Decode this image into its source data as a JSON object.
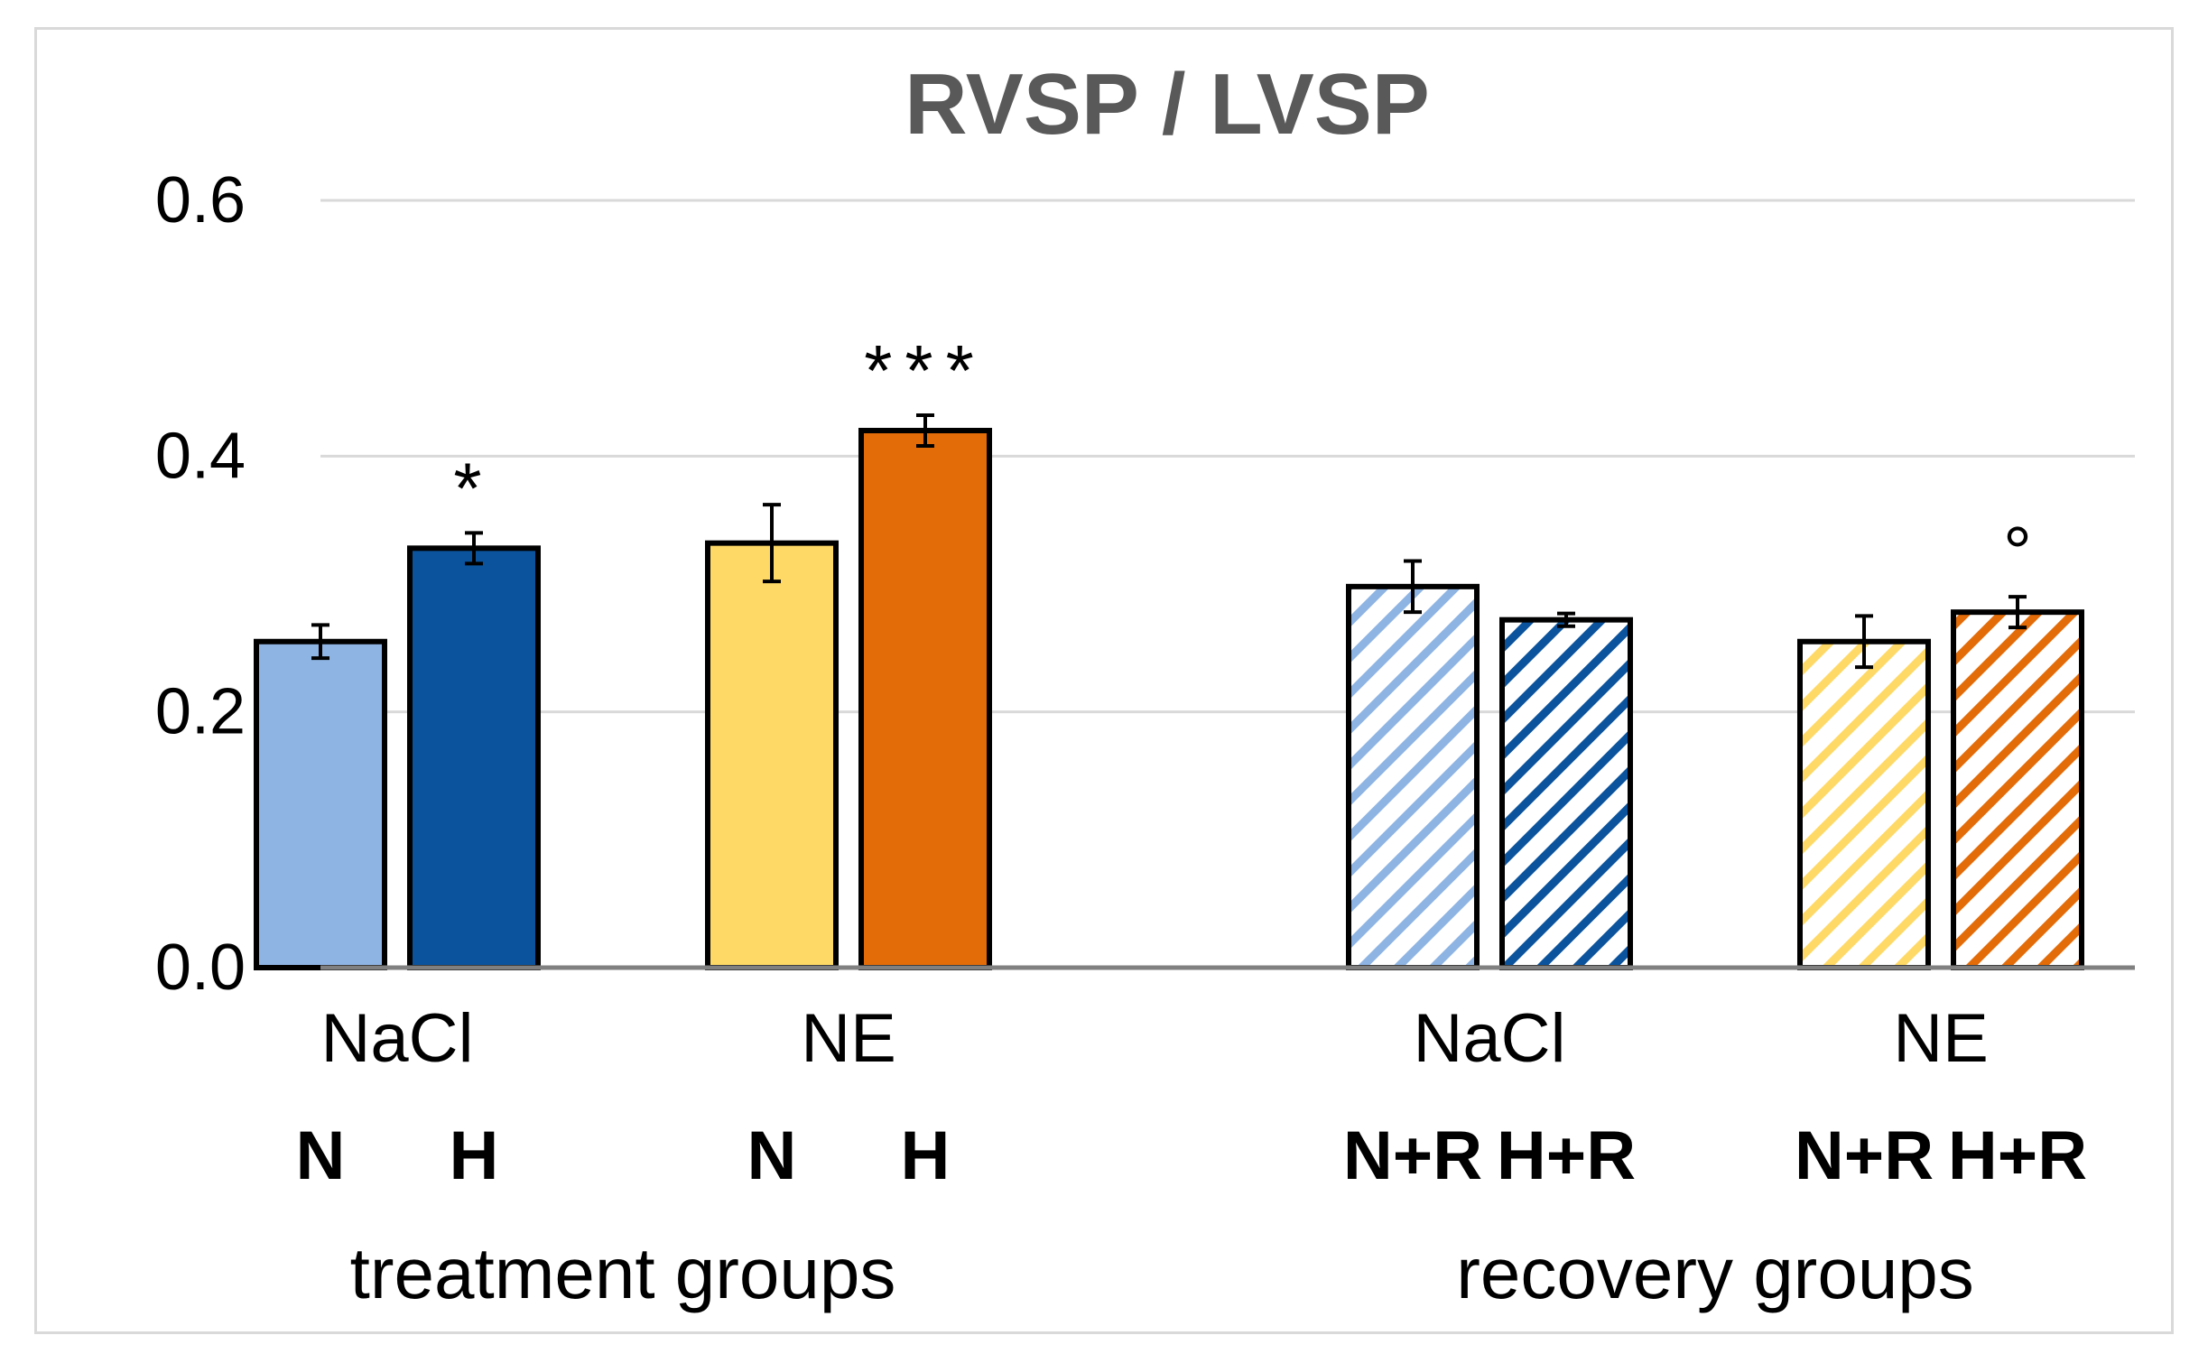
{
  "chart_data": {
    "type": "bar",
    "title": "RVSP / LVSP",
    "xlabel": "",
    "ylabel": "",
    "ylim": [
      0,
      0.6
    ],
    "yticks": [
      "0.0",
      "0.2",
      "0.4",
      "0.6"
    ],
    "grid": true,
    "sections": [
      {
        "label": "treatment groups",
        "groups": [
          {
            "label": "NaCl",
            "bars": [
              {
                "category": "N",
                "value": 0.255,
                "error": 0.013,
                "color": "#8eb4e3",
                "hatched": false,
                "annotation": ""
              },
              {
                "category": "H",
                "value": 0.328,
                "error": 0.012,
                "color": "#0b539c",
                "hatched": false,
                "annotation": "*"
              }
            ]
          },
          {
            "label": "NE",
            "bars": [
              {
                "category": "N",
                "value": 0.332,
                "error": 0.03,
                "color": "#ffd966",
                "hatched": false,
                "annotation": ""
              },
              {
                "category": "H",
                "value": 0.42,
                "error": 0.012,
                "color": "#e36c09",
                "hatched": false,
                "annotation": "***"
              }
            ]
          }
        ]
      },
      {
        "label": "recovery groups",
        "groups": [
          {
            "label": "NaCl",
            "bars": [
              {
                "category": "N+R",
                "value": 0.298,
                "error": 0.02,
                "color": "#8eb4e3",
                "hatched": true,
                "annotation": ""
              },
              {
                "category": "H+R",
                "value": 0.272,
                "error": 0.005,
                "color": "#0b539c",
                "hatched": true,
                "annotation": ""
              }
            ]
          },
          {
            "label": "NE",
            "bars": [
              {
                "category": "N+R",
                "value": 0.255,
                "error": 0.02,
                "color": "#ffd966",
                "hatched": true,
                "annotation": ""
              },
              {
                "category": "H+R",
                "value": 0.278,
                "error": 0.012,
                "color": "#e36c09",
                "hatched": true,
                "annotation": "°"
              }
            ]
          }
        ]
      }
    ]
  }
}
